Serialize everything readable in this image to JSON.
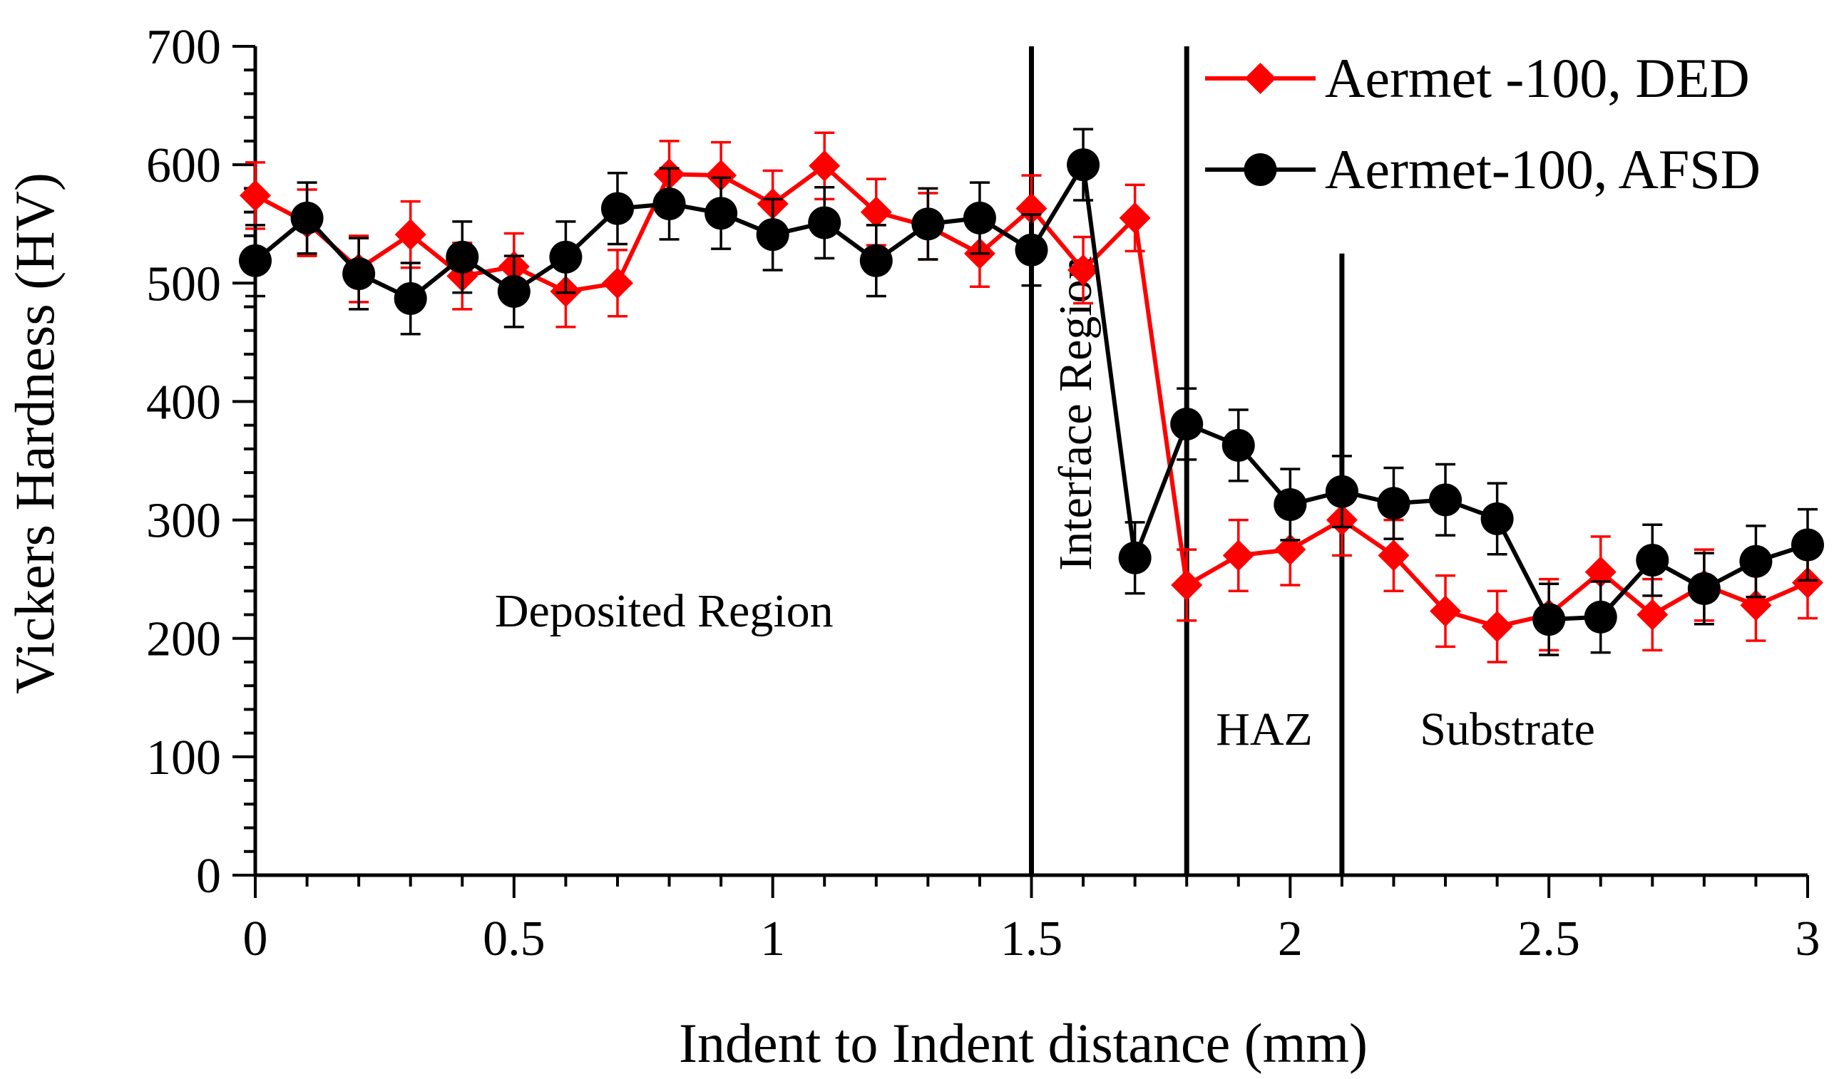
{
  "chart_data": {
    "type": "line",
    "xlabel": "Indent to Indent distance (mm)",
    "ylabel": "Vickers Hardness (HV)",
    "xlim": [
      0,
      3
    ],
    "ylim": [
      0,
      700
    ],
    "x_ticks": [
      0,
      0.5,
      1,
      1.5,
      2,
      2.5,
      3
    ],
    "x_tick_labels": [
      "0",
      "0.5",
      "1",
      "1.5",
      "2",
      "2.5",
      "3"
    ],
    "y_ticks": [
      0,
      100,
      200,
      300,
      400,
      500,
      600,
      700
    ],
    "y_tick_labels": [
      "0",
      "100",
      "200",
      "300",
      "400",
      "500",
      "600",
      "700"
    ],
    "legend_position": "top-right",
    "x": [
      0,
      0.1,
      0.2,
      0.3,
      0.4,
      0.5,
      0.6,
      0.7,
      0.8,
      0.9,
      1.0,
      1.1,
      1.2,
      1.3,
      1.4,
      1.5,
      1.6,
      1.7,
      1.8,
      1.9,
      2.0,
      2.1,
      2.2,
      2.3,
      2.4,
      2.5,
      2.6,
      2.7,
      2.8,
      2.9,
      3.0
    ],
    "series": [
      {
        "name": "Aermet -100, DED",
        "color": "#ff0000",
        "marker": "diamond",
        "values": [
          574,
          551,
          512,
          541,
          506,
          514,
          493,
          500,
          592,
          591,
          567,
          599,
          560,
          548,
          525,
          563,
          511,
          555,
          245,
          270,
          275,
          300,
          270,
          223,
          210,
          220,
          256,
          220,
          245,
          228,
          247
        ],
        "errors": [
          28,
          28,
          28,
          28,
          28,
          28,
          30,
          28,
          28,
          28,
          28,
          28,
          28,
          28,
          28,
          28,
          28,
          28,
          30,
          30,
          30,
          30,
          30,
          30,
          30,
          30,
          30,
          30,
          30,
          30,
          30
        ]
      },
      {
        "name": "Aermet-100, AFSD",
        "color": "#000000",
        "marker": "circle",
        "values": [
          519,
          555,
          508,
          487,
          522,
          493,
          522,
          563,
          567,
          559,
          541,
          551,
          519,
          550,
          555,
          528,
          600,
          268,
          381,
          363,
          313,
          324,
          314,
          317,
          301,
          216,
          218,
          266,
          242,
          265,
          279
        ],
        "errors": [
          30,
          30,
          30,
          30,
          30,
          30,
          30,
          30,
          30,
          30,
          30,
          30,
          30,
          30,
          30,
          30,
          30,
          30,
          30,
          30,
          30,
          30,
          30,
          30,
          30,
          30,
          30,
          30,
          30,
          30,
          30
        ]
      }
    ],
    "vertical_lines": [
      {
        "x": 1.5,
        "y_top": 700
      },
      {
        "x": 1.8,
        "y_top": 700
      },
      {
        "x": 2.1,
        "y_top": 525
      }
    ],
    "annotations": [
      {
        "text": "Deposited Region",
        "x": 0.79,
        "y": 210,
        "rotate": false
      },
      {
        "text": "Interface Region",
        "x": 1.615,
        "y": 390,
        "rotate": true
      },
      {
        "text": "HAZ",
        "x": 1.95,
        "y": 110,
        "rotate": false
      },
      {
        "text": "Substrate",
        "x": 2.42,
        "y": 110,
        "rotate": false
      }
    ]
  }
}
